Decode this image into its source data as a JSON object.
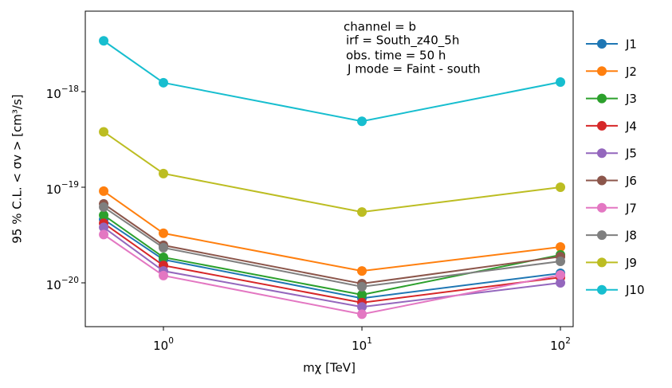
{
  "chart_data": {
    "type": "line",
    "x_label": "mχ [TeV]",
    "y_label": "95 % C.L. < σv >  [cm³/s]",
    "annotations": [
      "channel = b",
      "irf = South_z40_5h",
      "obs. time = 50 h",
      "J mode = Faint - south"
    ],
    "x": [
      0.5,
      1,
      10,
      100
    ],
    "x_scale": "log",
    "y_scale": "log",
    "xlim": [
      0.404,
      115.9
    ],
    "ylim": [
      3.48e-21,
      6.95e-18
    ],
    "xticks": [
      {
        "value": 1,
        "label": "10^0"
      },
      {
        "value": 10,
        "label": "10^1"
      },
      {
        "value": 100,
        "label": "10^2"
      }
    ],
    "yticks": [
      {
        "value": 1e-20,
        "label": "10^−20"
      },
      {
        "value": 1e-19,
        "label": "10^−19"
      },
      {
        "value": 1e-18,
        "label": "10^−18"
      }
    ],
    "grid": false,
    "legend": "outside right",
    "series": [
      {
        "name": "J1",
        "color": "#1f77b4",
        "values": [
          4.6e-20,
          1.75e-20,
          6.9e-21,
          1.26e-20
        ]
      },
      {
        "name": "J2",
        "color": "#ff7f0e",
        "values": [
          9.1e-20,
          3.3e-20,
          1.33e-20,
          2.37e-20
        ]
      },
      {
        "name": "J3",
        "color": "#2ca02c",
        "values": [
          5.1e-20,
          1.85e-20,
          7.5e-21,
          1.96e-20
        ]
      },
      {
        "name": "J4",
        "color": "#d62728",
        "values": [
          4.2e-20,
          1.52e-20,
          6.2e-21,
          1.14e-20
        ]
      },
      {
        "name": "J5",
        "color": "#9467bd",
        "values": [
          3.8e-20,
          1.33e-20,
          5.6e-21,
          1e-20
        ]
      },
      {
        "name": "J6",
        "color": "#8c564b",
        "values": [
          6.7e-20,
          2.47e-20,
          9.8e-21,
          1.88e-20
        ]
      },
      {
        "name": "J7",
        "color": "#e377c2",
        "values": [
          3.2e-20,
          1.19e-20,
          4.7e-21,
          1.21e-20
        ]
      },
      {
        "name": "J8",
        "color": "#7f7f7f",
        "values": [
          6.2e-20,
          2.33e-20,
          9.1e-21,
          1.68e-20
        ]
      },
      {
        "name": "J9",
        "color": "#bcbd22",
        "values": [
          3.8e-19,
          1.39e-19,
          5.5e-20,
          1e-19
        ]
      },
      {
        "name": "J10",
        "color": "#17becf",
        "values": [
          3.4e-18,
          1.24e-18,
          4.9e-19,
          1.26e-18
        ]
      }
    ]
  }
}
